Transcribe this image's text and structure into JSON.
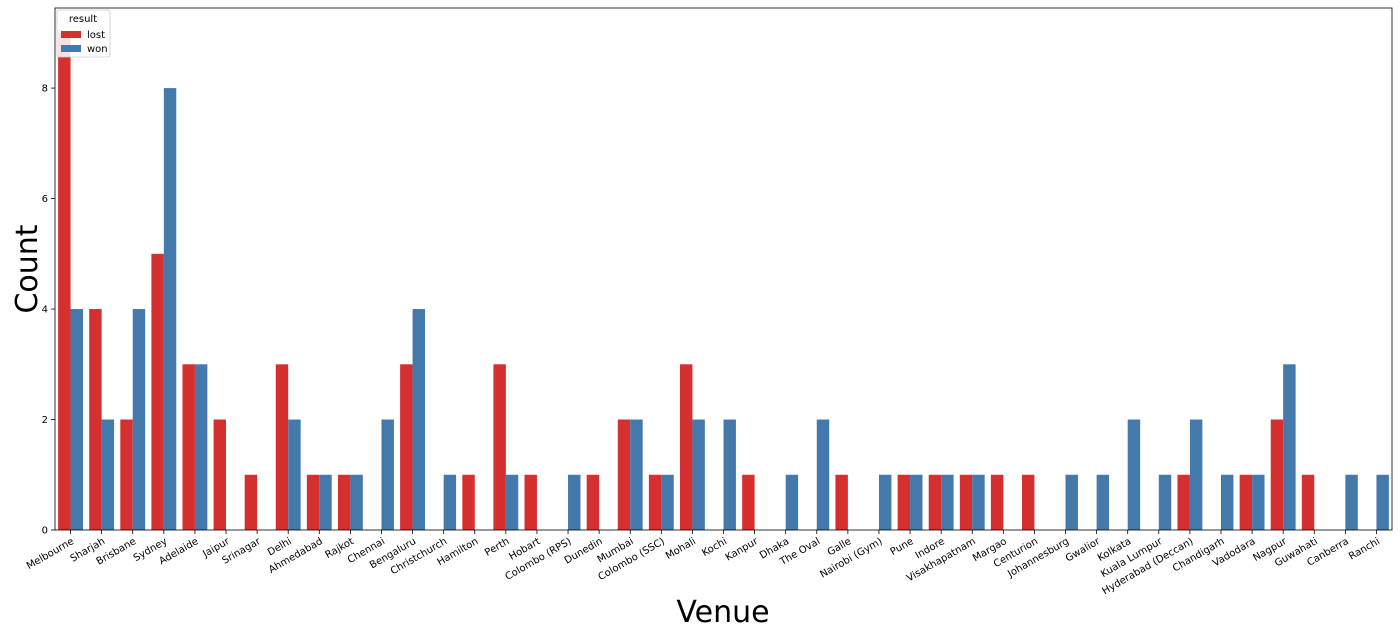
{
  "chart_data": {
    "type": "bar",
    "title": "",
    "xlabel": "Venue",
    "ylabel": "Count",
    "ylim": [
      0,
      9.45
    ],
    "yticks": [
      0,
      2,
      4,
      6,
      8
    ],
    "grid": false,
    "legend": {
      "title": "result",
      "placement": "top-left"
    },
    "categories": [
      "Melbourne",
      "Sharjah",
      "Brisbane",
      "Sydney",
      "Adelaide",
      "Jaipur",
      "Srinagar",
      "Delhi",
      "Ahmedabad",
      "Rajkot",
      "Chennai",
      "Bengaluru",
      "Christchurch",
      "Hamilton",
      "Perth",
      "Hobart",
      "Colombo (RPS)",
      "Dunedin",
      "Mumbai",
      "Colombo (SSC)",
      "Mohali",
      "Kochi",
      "Kanpur",
      "Dhaka",
      "The Oval",
      "Galle",
      "Nairobi (Gym)",
      "Pune",
      "Indore",
      "Visakhapatnam",
      "Margao",
      "Centurion",
      "Johannesburg",
      "Gwalior",
      "Kolkata",
      "Kuala Lumpur",
      "Hyderabad (Deccan)",
      "Chandigarh",
      "Vadodara",
      "Nagpur",
      "Guwahati",
      "Canberra",
      "Ranchi"
    ],
    "series": [
      {
        "name": "lost",
        "color": "#d62f30",
        "values": [
          9,
          4,
          2,
          5,
          3,
          2,
          1,
          3,
          1,
          1,
          0,
          3,
          0,
          1,
          3,
          1,
          0,
          1,
          2,
          1,
          3,
          0,
          1,
          0,
          0,
          1,
          0,
          1,
          1,
          1,
          1,
          1,
          0,
          0,
          0,
          0,
          1,
          0,
          1,
          2,
          1,
          0,
          0
        ]
      },
      {
        "name": "won",
        "color": "#4479ab",
        "values": [
          4,
          2,
          4,
          8,
          3,
          0,
          0,
          2,
          1,
          1,
          2,
          4,
          1,
          0,
          1,
          0,
          1,
          0,
          2,
          1,
          2,
          2,
          0,
          1,
          2,
          0,
          1,
          1,
          1,
          1,
          0,
          0,
          1,
          1,
          2,
          1,
          2,
          1,
          1,
          3,
          0,
          1,
          1
        ]
      }
    ]
  }
}
